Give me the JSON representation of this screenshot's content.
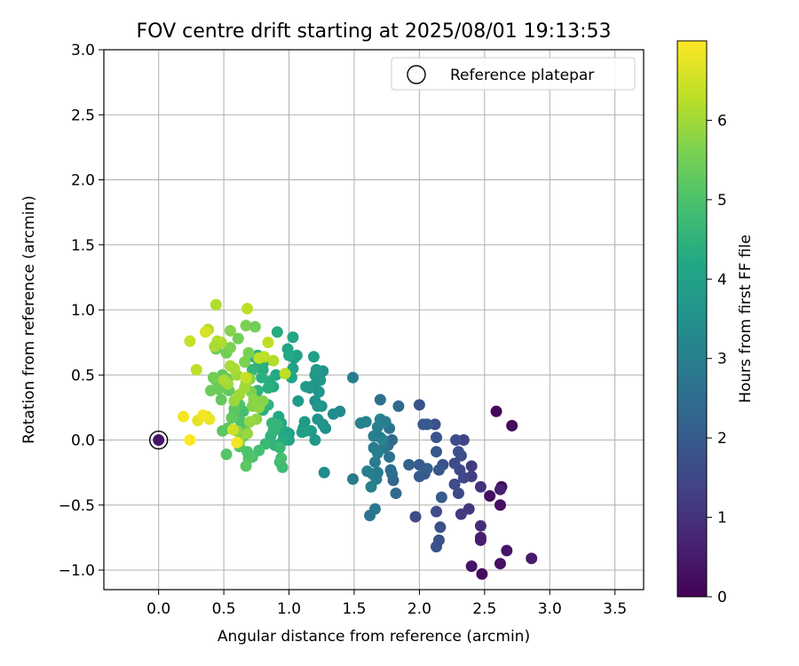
{
  "chart_data": {
    "type": "scatter",
    "title": "FOV centre drift starting at 2025/08/01 19:13:53",
    "xlabel": "Angular distance from reference (arcmin)",
    "ylabel": "Rotation from reference (arcmin)",
    "xlim": [
      -0.42,
      3.72
    ],
    "ylim": [
      -1.15,
      3.0
    ],
    "xticks": [
      "0.0",
      "0.5",
      "1.0",
      "1.5",
      "2.0",
      "2.5",
      "3.0",
      "3.5"
    ],
    "yticks": [
      "−1.0",
      "−0.5",
      "0.0",
      "0.5",
      "1.0",
      "1.5",
      "2.0",
      "2.5",
      "3.0"
    ],
    "grid": true,
    "legend": {
      "placement": "top-right",
      "entries": [
        "Reference platepar"
      ]
    },
    "colorbar": {
      "label": "Hours from first FF file",
      "range": [
        0,
        7
      ],
      "ticks": [
        "0",
        "1",
        "2",
        "3",
        "4",
        "5",
        "6"
      ],
      "colormap": "viridis"
    },
    "reference_point": {
      "x": 0.0,
      "y": 0.0
    },
    "points": [
      [
        2.48,
        -1.03,
        0.2
      ],
      [
        2.62,
        -0.95,
        0.3
      ],
      [
        2.4,
        -0.97,
        0.4
      ],
      [
        2.47,
        -0.77,
        0.5
      ],
      [
        2.67,
        -0.85,
        0.4
      ],
      [
        2.86,
        -0.91,
        0.5
      ],
      [
        2.54,
        -0.43,
        0.3
      ],
      [
        2.62,
        -0.5,
        0.3
      ],
      [
        2.63,
        -0.36,
        0.2
      ],
      [
        2.59,
        0.22,
        0.1
      ],
      [
        2.71,
        0.11,
        0.2
      ],
      [
        2.47,
        -0.75,
        0.6
      ],
      [
        2.47,
        -0.66,
        0.9
      ],
      [
        2.62,
        -0.38,
        0.6
      ],
      [
        2.47,
        -0.36,
        1.0
      ],
      [
        2.38,
        -0.53,
        1.1
      ],
      [
        2.32,
        -0.57,
        1.2
      ],
      [
        2.4,
        -0.28,
        1.3
      ],
      [
        2.34,
        -0.29,
        1.5
      ],
      [
        2.3,
        -0.41,
        1.5
      ],
      [
        2.27,
        -0.34,
        1.6
      ],
      [
        2.31,
        -0.23,
        1.5
      ],
      [
        2.32,
        -0.12,
        1.6
      ],
      [
        2.4,
        -0.2,
        1.2
      ],
      [
        2.34,
        0.0,
        1.4
      ],
      [
        2.28,
        0.0,
        1.6
      ],
      [
        2.3,
        -0.09,
        1.7
      ],
      [
        2.27,
        -0.18,
        1.6
      ],
      [
        2.16,
        -0.67,
        1.7
      ],
      [
        2.13,
        -0.55,
        1.6
      ],
      [
        2.13,
        -0.82,
        1.8
      ],
      [
        2.15,
        -0.77,
        1.7
      ],
      [
        2.17,
        -0.44,
        2.0
      ],
      [
        2.18,
        -0.19,
        1.8
      ],
      [
        2.15,
        -0.23,
        1.9
      ],
      [
        2.13,
        -0.09,
        1.9
      ],
      [
        2.13,
        0.02,
        1.8
      ],
      [
        2.12,
        0.12,
        1.7
      ],
      [
        1.97,
        -0.59,
        1.6
      ],
      [
        2.04,
        -0.26,
        1.9
      ],
      [
        2.0,
        -0.28,
        2.0
      ],
      [
        2.0,
        -0.19,
        2.0
      ],
      [
        2.06,
        -0.22,
        2.1
      ],
      [
        2.03,
        0.12,
        1.9
      ],
      [
        2.06,
        0.12,
        2.0
      ],
      [
        2.0,
        0.27,
        1.8
      ],
      [
        1.92,
        -0.19,
        2.2
      ],
      [
        1.82,
        -0.41,
        2.4
      ],
      [
        1.8,
        -0.31,
        2.3
      ],
      [
        1.79,
        -0.26,
        2.5
      ],
      [
        1.78,
        -0.23,
        2.5
      ],
      [
        1.77,
        -0.13,
        2.6
      ],
      [
        1.76,
        -0.04,
        2.5
      ],
      [
        1.79,
        0.0,
        2.4
      ],
      [
        1.84,
        0.26,
        2.4
      ],
      [
        1.7,
        0.31,
        2.6
      ],
      [
        1.77,
        0.09,
        2.6
      ],
      [
        1.7,
        0.02,
        2.8
      ],
      [
        1.73,
        -0.06,
        2.8
      ],
      [
        1.65,
        -0.06,
        2.9
      ],
      [
        1.66,
        -0.17,
        2.9
      ],
      [
        1.64,
        -0.26,
        2.9
      ],
      [
        1.63,
        -0.36,
        3.0
      ],
      [
        1.67,
        -0.3,
        3.0
      ],
      [
        1.66,
        -0.53,
        2.8
      ],
      [
        1.62,
        -0.58,
        2.7
      ],
      [
        1.68,
        -0.25,
        2.9
      ],
      [
        1.65,
        0.03,
        3.0
      ],
      [
        1.68,
        0.1,
        3.0
      ],
      [
        1.7,
        0.16,
        3.1
      ],
      [
        1.74,
        0.14,
        3.0
      ],
      [
        1.72,
        0.0,
        3.1
      ],
      [
        1.68,
        -0.1,
        3.0
      ],
      [
        1.6,
        -0.24,
        3.0
      ],
      [
        1.55,
        0.13,
        3.1
      ],
      [
        1.59,
        0.14,
        3.1
      ],
      [
        1.49,
        0.48,
        3.0
      ],
      [
        1.49,
        -0.3,
        2.9
      ],
      [
        1.27,
        -0.25,
        3.4
      ],
      [
        1.34,
        0.2,
        3.4
      ],
      [
        1.39,
        0.22,
        3.3
      ],
      [
        1.28,
        0.09,
        3.5
      ],
      [
        1.26,
        0.12,
        3.6
      ],
      [
        1.22,
        0.16,
        3.6
      ],
      [
        1.2,
        0.3,
        3.5
      ],
      [
        1.25,
        0.26,
        3.6
      ],
      [
        1.22,
        0.26,
        3.7
      ],
      [
        1.23,
        0.37,
        3.6
      ],
      [
        1.19,
        0.42,
        3.6
      ],
      [
        1.2,
        0.5,
        3.7
      ],
      [
        1.26,
        0.53,
        3.5
      ],
      [
        1.24,
        0.46,
        3.7
      ],
      [
        1.21,
        0.54,
        3.8
      ],
      [
        1.19,
        0.64,
        3.9
      ],
      [
        1.13,
        0.41,
        3.8
      ],
      [
        1.16,
        0.4,
        3.7
      ],
      [
        1.11,
        0.09,
        3.7
      ],
      [
        1.12,
        0.14,
        3.8
      ],
      [
        1.17,
        0.07,
        3.8
      ],
      [
        1.13,
        0.07,
        3.9
      ],
      [
        1.2,
        0.0,
        3.7
      ],
      [
        1.1,
        0.06,
        3.9
      ],
      [
        1.07,
        0.3,
        3.8
      ],
      [
        1.04,
        0.63,
        3.9
      ],
      [
        1.06,
        0.65,
        4.0
      ],
      [
        1.03,
        0.55,
        4.0
      ],
      [
        1.03,
        0.79,
        4.1
      ],
      [
        0.99,
        0.7,
        4.1
      ],
      [
        1.0,
        0.65,
        4.2
      ],
      [
        1.02,
        0.48,
        4.1
      ],
      [
        1.0,
        0.05,
        4.0
      ],
      [
        0.98,
        0.06,
        4.1
      ],
      [
        1.0,
        0.0,
        4.1
      ],
      [
        0.96,
        0.04,
        4.2
      ],
      [
        0.94,
        0.13,
        4.2
      ],
      [
        0.95,
        -0.01,
        4.3
      ],
      [
        0.93,
        0.1,
        4.3
      ],
      [
        0.92,
        0.18,
        4.2
      ],
      [
        0.91,
        0.83,
        4.3
      ],
      [
        0.9,
        0.5,
        4.2
      ],
      [
        0.88,
        0.41,
        4.3
      ],
      [
        0.85,
        0.45,
        4.3
      ],
      [
        0.84,
        0.4,
        4.4
      ],
      [
        0.82,
        0.61,
        4.4
      ],
      [
        0.8,
        0.54,
        4.3
      ],
      [
        0.79,
        0.48,
        4.4
      ],
      [
        0.77,
        0.58,
        4.4
      ],
      [
        0.76,
        0.65,
        4.5
      ],
      [
        0.73,
        0.64,
        4.5
      ],
      [
        0.72,
        0.54,
        4.6
      ],
      [
        0.76,
        0.38,
        4.5
      ],
      [
        0.77,
        0.3,
        4.6
      ],
      [
        0.8,
        0.23,
        4.4
      ],
      [
        0.84,
        0.27,
        4.5
      ],
      [
        0.86,
        0.03,
        4.5
      ],
      [
        0.88,
        0.07,
        4.6
      ],
      [
        0.87,
        0.13,
        4.6
      ],
      [
        0.89,
        -0.04,
        4.5
      ],
      [
        0.91,
        0.12,
        4.6
      ],
      [
        0.93,
        -0.06,
        4.7
      ],
      [
        0.93,
        -0.17,
        4.8
      ],
      [
        0.95,
        -0.21,
        4.8
      ],
      [
        0.94,
        -0.14,
        4.9
      ],
      [
        0.82,
        -0.03,
        4.7
      ],
      [
        0.77,
        -0.08,
        4.9
      ],
      [
        0.72,
        -0.13,
        5.0
      ],
      [
        0.69,
        -0.14,
        5.1
      ],
      [
        0.67,
        -0.2,
        5.2
      ],
      [
        0.68,
        -0.09,
        5.0
      ],
      [
        0.62,
        -0.05,
        5.1
      ],
      [
        0.65,
        0.03,
        5.0
      ],
      [
        0.66,
        0.1,
        5.1
      ],
      [
        0.63,
        0.14,
        5.0
      ],
      [
        0.65,
        0.22,
        4.9
      ],
      [
        0.62,
        0.27,
        5.0
      ],
      [
        0.58,
        0.2,
        5.1
      ],
      [
        0.52,
        -0.11,
        5.1
      ],
      [
        0.49,
        0.07,
        5.2
      ],
      [
        0.53,
        0.09,
        5.2
      ],
      [
        0.56,
        0.17,
        5.3
      ],
      [
        0.58,
        0.24,
        5.2
      ],
      [
        0.54,
        0.38,
        5.3
      ],
      [
        0.48,
        0.31,
        5.3
      ],
      [
        0.46,
        0.39,
        5.4
      ],
      [
        0.44,
        0.46,
        5.4
      ],
      [
        0.49,
        0.5,
        5.3
      ],
      [
        0.53,
        0.47,
        5.4
      ],
      [
        0.4,
        0.38,
        5.4
      ],
      [
        0.42,
        0.48,
        5.5
      ],
      [
        0.44,
        0.7,
        5.4
      ],
      [
        0.52,
        0.67,
        5.5
      ],
      [
        0.55,
        0.71,
        5.6
      ],
      [
        0.61,
        0.78,
        5.5
      ],
      [
        0.55,
        0.84,
        5.7
      ],
      [
        0.67,
        0.88,
        5.6
      ],
      [
        0.74,
        0.87,
        5.5
      ],
      [
        0.69,
        0.67,
        5.6
      ],
      [
        0.66,
        0.6,
        5.6
      ],
      [
        0.7,
        0.47,
        5.7
      ],
      [
        0.71,
        0.37,
        5.6
      ],
      [
        0.72,
        0.26,
        5.7
      ],
      [
        0.73,
        0.31,
        5.8
      ],
      [
        0.77,
        0.25,
        5.8
      ],
      [
        0.8,
        0.3,
        5.7
      ],
      [
        0.75,
        0.16,
        5.8
      ],
      [
        0.7,
        0.14,
        5.9
      ],
      [
        0.68,
        0.05,
        5.9
      ],
      [
        0.62,
        -0.01,
        5.9
      ],
      [
        0.6,
        0.07,
        5.8
      ],
      [
        0.58,
        0.3,
        5.9
      ],
      [
        0.62,
        0.35,
        6.0
      ],
      [
        0.66,
        0.4,
        6.0
      ],
      [
        0.67,
        0.44,
        6.0
      ],
      [
        0.6,
        0.5,
        6.0
      ],
      [
        0.58,
        0.55,
        6.1
      ],
      [
        0.55,
        0.57,
        6.1
      ],
      [
        0.53,
        0.43,
        6.0
      ],
      [
        0.5,
        0.46,
        6.1
      ],
      [
        0.48,
        0.75,
        6.1
      ],
      [
        0.45,
        0.76,
        6.2
      ],
      [
        0.44,
        1.04,
        6.2
      ],
      [
        0.43,
        0.72,
        6.1
      ],
      [
        0.38,
        0.85,
        6.2
      ],
      [
        0.68,
        1.01,
        6.3
      ],
      [
        0.77,
        0.63,
        6.3
      ],
      [
        0.81,
        0.64,
        6.3
      ],
      [
        0.84,
        0.75,
        6.3
      ],
      [
        0.88,
        0.61,
        6.2
      ],
      [
        0.97,
        0.51,
        6.3
      ],
      [
        0.67,
        0.48,
        6.4
      ],
      [
        0.29,
        0.54,
        6.3
      ],
      [
        0.24,
        0.76,
        6.4
      ],
      [
        0.36,
        0.83,
        6.6
      ],
      [
        0.57,
        0.08,
        6.5
      ],
      [
        0.37,
        0.18,
        6.6
      ],
      [
        0.39,
        0.16,
        6.8
      ],
      [
        0.3,
        0.15,
        6.7
      ],
      [
        0.34,
        0.19,
        6.9
      ],
      [
        0.19,
        0.18,
        6.9
      ],
      [
        0.6,
        -0.02,
        6.9
      ],
      [
        0.24,
        0.0,
        7.0
      ]
    ]
  }
}
